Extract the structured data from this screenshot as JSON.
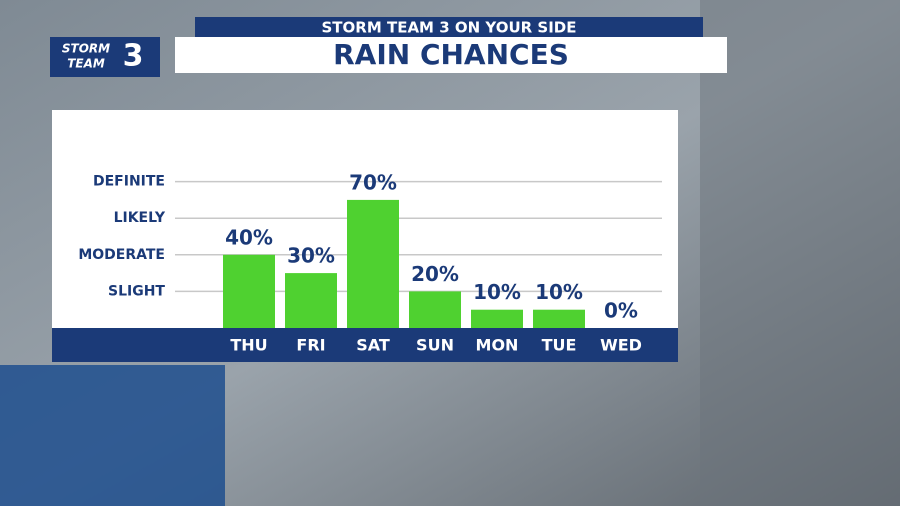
{
  "header": {
    "logo": [
      "STORM",
      "TEAM",
      "3"
    ],
    "subtitle": "STORM TEAM 3 ON YOUR SIDE",
    "title": "RAIN CHANCES"
  },
  "chart_data": {
    "type": "bar",
    "categories": [
      "THU",
      "FRI",
      "SAT",
      "SUN",
      "MON",
      "TUE",
      "WED"
    ],
    "values": [
      40,
      30,
      70,
      20,
      10,
      10,
      0
    ],
    "value_labels": [
      "40%",
      "30%",
      "70%",
      "20%",
      "10%",
      "10%",
      "0%"
    ],
    "color": "#4fd130",
    "ylim": [
      0,
      100
    ],
    "yticks": [
      {
        "value": 20,
        "label": "SLIGHT"
      },
      {
        "value": 40,
        "label": "MODERATE"
      },
      {
        "value": 60,
        "label": "LIKELY"
      },
      {
        "value": 80,
        "label": "DEFINITE"
      }
    ],
    "grid": true
  }
}
